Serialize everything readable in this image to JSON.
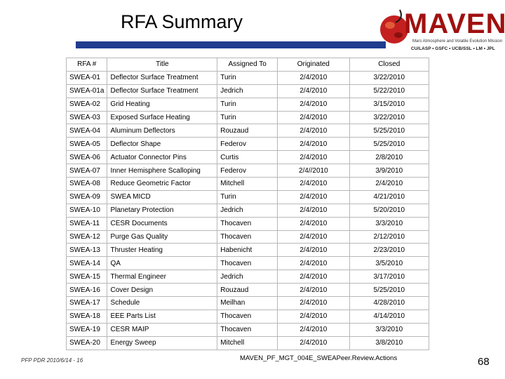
{
  "header": {
    "title": "RFA Summary",
    "logo_text": "MAVEN",
    "logo_tagline": "Mars Atmosphere and Volatile Evolution Mission",
    "logo_partners": "CU/LASP • GSFC • UCB/SSL • LM • JPL"
  },
  "table": {
    "columns": [
      "RFA #",
      "Title",
      "Assigned To",
      "Originated",
      "Closed"
    ],
    "rows": [
      [
        "SWEA-01",
        "Deflector Surface Treatment",
        "Turin",
        "2/4/2010",
        "3/22/2010"
      ],
      [
        "SWEA-01a",
        "Deflector Surface Treatment",
        "Jedrich",
        "2/4/2010",
        "5/22/2010"
      ],
      [
        "SWEA-02",
        "Grid Heating",
        "Turin",
        "2/4/2010",
        "3/15/2010"
      ],
      [
        "SWEA-03",
        "Exposed Surface Heating",
        "Turin",
        "2/4/2010",
        "3/22/2010"
      ],
      [
        "SWEA-04",
        "Aluminum Deflectors",
        "Rouzaud",
        "2/4/2010",
        "5/25/2010"
      ],
      [
        "SWEA-05",
        "Deflector Shape",
        "Federov",
        "2/4/2010",
        "5/25/2010"
      ],
      [
        "SWEA-06",
        "Actuator Connector Pins",
        "Curtis",
        "2/4/2010",
        "2/8/2010"
      ],
      [
        "SWEA-07",
        "Inner Hemisphere Scalloping",
        "Federov",
        "2/4//2010",
        "3/9/2010"
      ],
      [
        "SWEA-08",
        "Reduce Geometric Factor",
        "Mitchell",
        "2/4/2010",
        "2/4/2010"
      ],
      [
        "SWEA-09",
        "SWEA MICD",
        "Turin",
        "2/4/2010",
        "4/21/2010"
      ],
      [
        "SWEA-10",
        "Planetary Protection",
        "Jedrich",
        "2/4/2010",
        "5/20/2010"
      ],
      [
        "SWEA-11",
        "CESR Documents",
        "Thocaven",
        "2/4/2010",
        "3/3/2010"
      ],
      [
        "SWEA-12",
        "Purge Gas Quality",
        "Thocaven",
        "2/4/2010",
        "2/12/2010"
      ],
      [
        "SWEA-13",
        "Thruster Heating",
        "Habenicht",
        "2/4/2010",
        "2/23/2010"
      ],
      [
        "SWEA-14",
        "QA",
        "Thocaven",
        "2/4/2010",
        "3/5/2010"
      ],
      [
        "SWEA-15",
        "Thermal Engineer",
        "Jedrich",
        "2/4/2010",
        "3/17/2010"
      ],
      [
        "SWEA-16",
        "Cover Design",
        "Rouzaud",
        "2/4/2010",
        "5/25/2010"
      ],
      [
        "SWEA-17",
        "Schedule",
        "Meilhan",
        "2/4/2010",
        "4/28/2010"
      ],
      [
        "SWEA-18",
        "EEE Parts List",
        "Thocaven",
        "2/4/2010",
        "4/14/2010"
      ],
      [
        "SWEA-19",
        "CESR MAIP",
        "Thocaven",
        "2/4/2010",
        "3/3/2010"
      ],
      [
        "SWEA-20",
        "Energy Sweep",
        "Mitchell",
        "2/4/2010",
        "3/8/2010"
      ]
    ]
  },
  "footer": {
    "left": "PFP PDR 2010/6/14 - 16",
    "center": "MAVEN_PF_MGT_004E_SWEAPeer.Review.Actions",
    "page_number": "68"
  }
}
